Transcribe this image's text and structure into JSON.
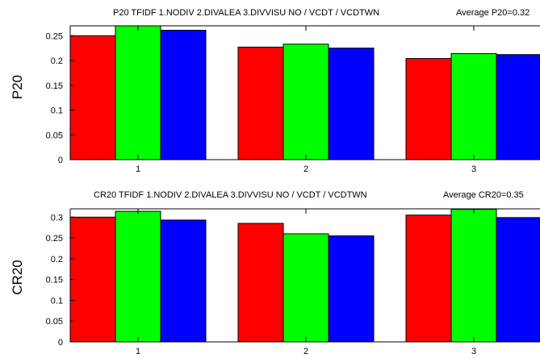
{
  "chart_data": [
    {
      "type": "bar",
      "title_left": "P20 TFIDF   1.NODIV  2.DIVALEA  3.DIVVISU  NO / VCDT / VCDTWN",
      "title_right": "Average P20=0.32",
      "ylabel": "P20",
      "categories": [
        "1",
        "2",
        "3"
      ],
      "ylim": [
        0,
        0.27
      ],
      "yticks": [
        "0",
        "0.05",
        "0.1",
        "0.15",
        "0.2",
        "0.25"
      ],
      "series": [
        {
          "color": "#ff0000",
          "values": [
            0.25,
            0.227,
            0.204
          ]
        },
        {
          "color": "#00ff00",
          "values": [
            0.27,
            0.233,
            0.214
          ]
        },
        {
          "color": "#0000ff",
          "values": [
            0.261,
            0.225,
            0.212
          ]
        }
      ],
      "grid": false
    },
    {
      "type": "bar",
      "title_left": "CR20 TFIDF  1.NODIV  2.DIVALEA  3.DIVVISU  NO / VCDT / VCDTWN",
      "title_right": "Average CR20=0.35",
      "ylabel": "CR20",
      "categories": [
        "1",
        "2",
        "3"
      ],
      "ylim": [
        0,
        0.32
      ],
      "yticks": [
        "0",
        "0.05",
        "0.1",
        "0.15",
        "0.2",
        "0.25",
        "0.3"
      ],
      "series": [
        {
          "color": "#ff0000",
          "values": [
            0.3,
            0.285,
            0.305
          ]
        },
        {
          "color": "#00ff00",
          "values": [
            0.314,
            0.26,
            0.319
          ]
        },
        {
          "color": "#0000ff",
          "values": [
            0.293,
            0.255,
            0.299
          ]
        }
      ],
      "grid": false
    }
  ]
}
